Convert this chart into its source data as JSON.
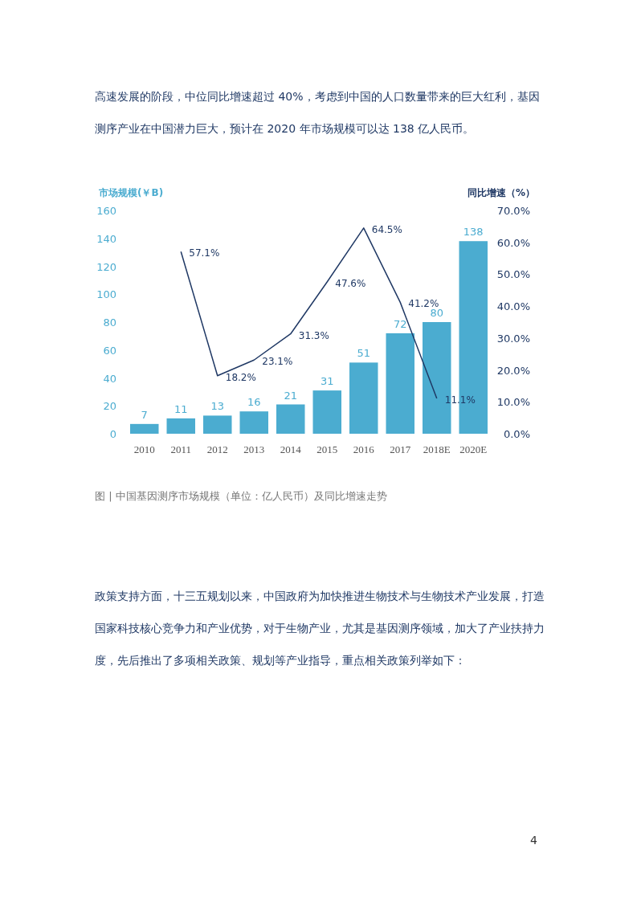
{
  "chart_data": {
    "type": "bar",
    "ylabel": "市场规模(￥B)",
    "y2label": "同比增速（%）",
    "categories": [
      "2010",
      "2011",
      "2012",
      "2013",
      "2014",
      "2015",
      "2016",
      "2017",
      "2018E",
      "2020E"
    ],
    "ylim": [
      0,
      160
    ],
    "yticks": [
      0,
      20,
      40,
      60,
      80,
      100,
      120,
      140,
      160
    ],
    "y2lim": [
      0,
      70
    ],
    "y2ticks": [
      {
        "value": 0,
        "label": "0.0%"
      },
      {
        "value": 10,
        "label": "10.0%"
      },
      {
        "value": 20,
        "label": "20.0%"
      },
      {
        "value": 30,
        "label": "30.0%"
      },
      {
        "value": 40,
        "label": "40.0%"
      },
      {
        "value": 50,
        "label": "50.0%"
      },
      {
        "value": 60,
        "label": "60.0%"
      },
      {
        "value": 70,
        "label": "70.0%"
      }
    ],
    "series": [
      {
        "color": "#4bacd0",
        "values": [
          7,
          11,
          13,
          16,
          21,
          31,
          51,
          72,
          80,
          138
        ],
        "value_labels": [
          "7",
          "11",
          "13",
          "16",
          "21",
          "31",
          "51",
          "72",
          "80",
          "138"
        ]
      },
      {
        "type": "line",
        "axis": "y2",
        "color": "#1f3864",
        "values": [
          null,
          57.1,
          18.2,
          23.1,
          31.3,
          47.6,
          64.5,
          41.2,
          11.1,
          null
        ],
        "value_labels": [
          null,
          "57.1%",
          "18.2%",
          "23.1%",
          "31.3%",
          "47.6%",
          "64.5%",
          "41.2%",
          "11.1%",
          null
        ]
      }
    ],
    "annotations": [
      "高速发展的阶段，中位同比增速超过 40%，考虑到中国的人口数量带来的巨大红利，基因测序产业在中国潜力巨大，预计在 2020 年市场规模可以达 138 亿人民币。",
      "图 | 中国基因测序市场规模（单位：亿人民币）及同比增速走势",
      "政策支持方面，十三五规划以来，中国政府为加快推进生物技术与生物技术产业发展，打造国家科技核心竞争力和产业优势，对于生物产业，尤其是基因测序领域，加大了产业扶持力度，先后推出了多项相关政策、规划等产业指导，重点相关政策列举如下：",
      "4"
    ]
  }
}
